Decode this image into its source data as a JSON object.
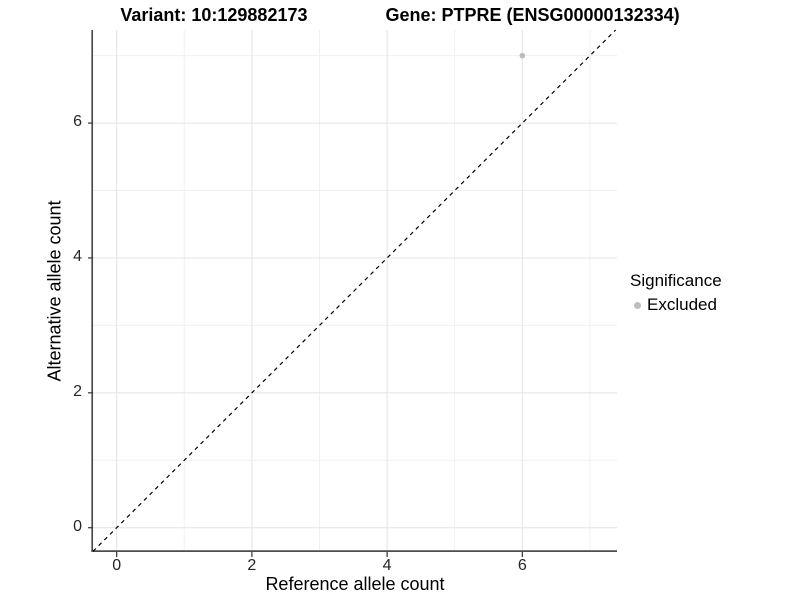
{
  "chart_data": {
    "type": "scatter",
    "title_variant": "Variant: 10:129882173",
    "title_gene": "Gene: PTPRE (ENSG00000132334)",
    "xlabel": "Reference allele count",
    "ylabel": "Alternative allele count",
    "xlim": [
      -0.35,
      7.4
    ],
    "ylim": [
      -0.36,
      7.38
    ],
    "x_major_ticks": [
      0,
      2,
      4,
      6
    ],
    "x_minor_ticks": [
      1,
      3,
      5,
      7
    ],
    "y_major_ticks": [
      0,
      2,
      4,
      6
    ],
    "y_minor_ticks": [
      1,
      3,
      5,
      7
    ],
    "grid": "on",
    "reference_line": {
      "equation": "y = x",
      "style": "dashed",
      "color": "#000000"
    },
    "series": [
      {
        "name": "Excluded",
        "color": "#bdbdbd",
        "points": [
          {
            "x": 6,
            "y": 7
          }
        ]
      }
    ],
    "legend": {
      "title": "Significance",
      "position": "right",
      "items": [
        {
          "label": "Excluded",
          "color": "#bdbdbd",
          "marker": "point-icon"
        }
      ]
    },
    "colors": {
      "background": "#ffffff",
      "grid_major": "#e4e4e4",
      "grid_minor": "#f0f0f0",
      "axis_line": "#4d4d4d",
      "tick_mark": "#333333",
      "text": "#000000",
      "excluded_point": "#bdbdbd"
    }
  }
}
